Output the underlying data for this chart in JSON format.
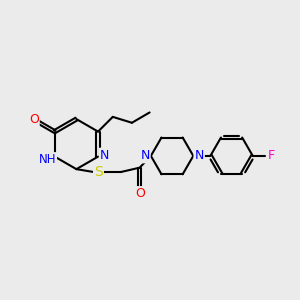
{
  "background_color": "#ebebeb",
  "bond_color": "#000000",
  "atom_colors": {
    "N": "#0000ff",
    "O": "#ff0000",
    "S": "#cccc00",
    "F": "#ff00cc",
    "C": "#000000",
    "H": "#0000ff"
  },
  "figsize": [
    3.0,
    3.0
  ],
  "dpi": 100,
  "xlim": [
    0,
    10
  ],
  "ylim": [
    0,
    10
  ]
}
